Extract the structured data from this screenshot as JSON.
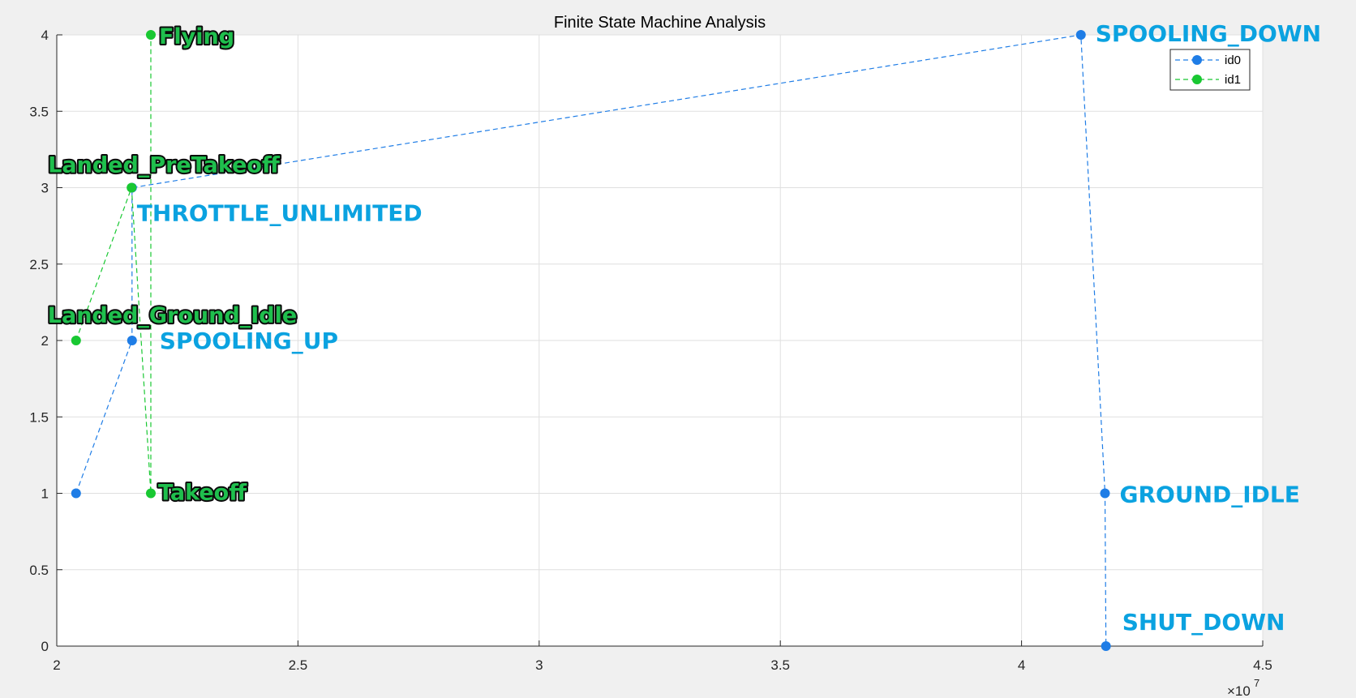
{
  "chart_data": {
    "type": "line",
    "title": "Finite State Machine Analysis",
    "xlabel": "",
    "ylabel": "",
    "xlim": [
      20000000,
      45000000
    ],
    "ylim": [
      0,
      4
    ],
    "xticks": [
      20000000,
      25000000,
      30000000,
      35000000,
      40000000,
      45000000
    ],
    "xtick_labels": [
      "2",
      "2.5",
      "3",
      "3.5",
      "4",
      "4.5"
    ],
    "x_exponent_base": "×10",
    "x_exponent_power": "7",
    "yticks": [
      0,
      0.5,
      1,
      1.5,
      2,
      2.5,
      3,
      3.5,
      4
    ],
    "ytick_labels": [
      "0",
      "0.5",
      "1",
      "1.5",
      "2",
      "2.5",
      "3",
      "3.5",
      "4"
    ],
    "grid": true,
    "legend_position": "top-right",
    "series": [
      {
        "name": "id0",
        "color": "#1f7de6",
        "line_style": "dashed",
        "points": [
          {
            "x": 20400000,
            "y": 1
          },
          {
            "x": 21560000,
            "y": 2
          },
          {
            "x": 21560000,
            "y": 3
          },
          {
            "x": 41230000,
            "y": 4
          },
          {
            "x": 41730000,
            "y": 1
          },
          {
            "x": 41750000,
            "y": 0
          }
        ],
        "annotations": [
          {
            "text": "SPOOLING_UP",
            "x": 21560000,
            "y": 2
          },
          {
            "text": "THROTTLE_UNLIMITED",
            "x": 21560000,
            "y": 3
          },
          {
            "text": "SPOOLING_DOWN",
            "x": 41230000,
            "y": 4
          },
          {
            "text": "GROUND_IDLE",
            "x": 41730000,
            "y": 1
          },
          {
            "text": "SHUT_DOWN",
            "x": 41750000,
            "y": 0
          }
        ]
      },
      {
        "name": "id1",
        "color": "#19c832",
        "line_style": "dashed",
        "points": [
          {
            "x": 20400000,
            "y": 2
          },
          {
            "x": 21550000,
            "y": 3
          },
          {
            "x": 21950000,
            "y": 1
          },
          {
            "x": 21950000,
            "y": 4
          }
        ],
        "annotations": [
          {
            "text": "Landed_Ground_Idle",
            "x": 20400000,
            "y": 2
          },
          {
            "text": "Landed_PreTakeoff",
            "x": 21550000,
            "y": 3
          },
          {
            "text": "Takeoff",
            "x": 21950000,
            "y": 1
          },
          {
            "text": "Flying",
            "x": 21950000,
            "y": 4
          }
        ]
      }
    ]
  }
}
